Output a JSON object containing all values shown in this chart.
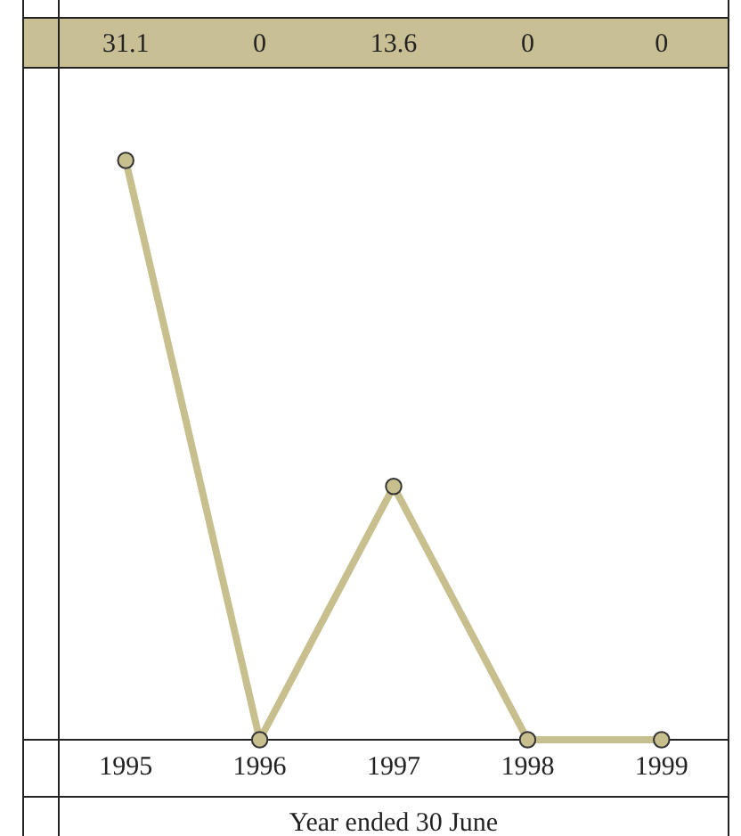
{
  "chart_data": {
    "type": "line",
    "categories": [
      "1995",
      "1996",
      "1997",
      "1998",
      "1999"
    ],
    "series": [
      {
        "color": "#c8bf8f",
        "values": [
          31.1,
          0,
          13.6,
          0,
          0
        ]
      }
    ],
    "data_labels": true,
    "marker": "circle",
    "line_style": "solid",
    "xlabel": "Year ended 30 June"
  }
}
